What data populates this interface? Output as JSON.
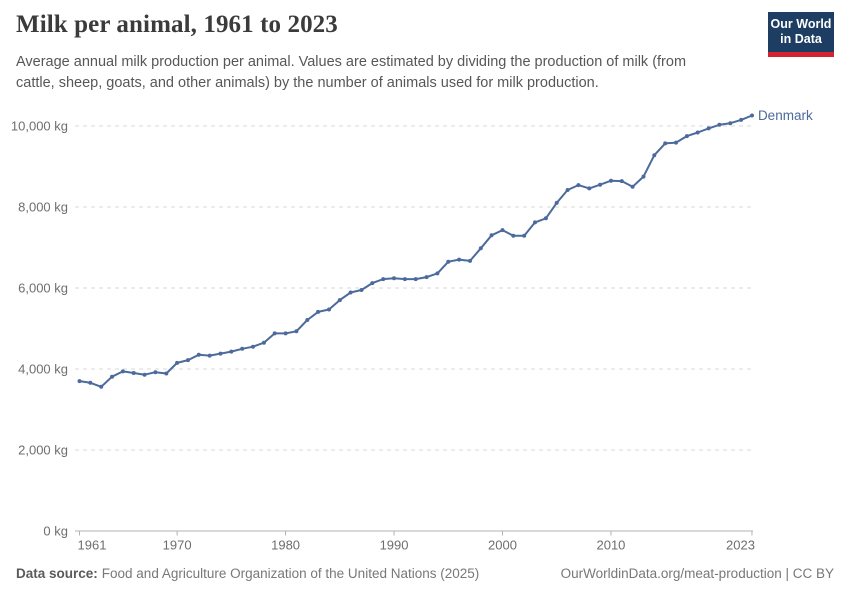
{
  "header": {
    "title": "Milk per animal, 1961 to 2023",
    "subtitle": "Average annual milk production per animal. Values are estimated by dividing the production of milk (from cattle, sheep, goats, and other animals) by the number of animals used for milk production.",
    "logo": {
      "line1": "Our World",
      "line2": "in Data"
    }
  },
  "footer": {
    "source_label": "Data source:",
    "source_text": "Food and Agriculture Organization of the United Nations (2025)",
    "link_text": "OurWorldinData.org/meat-production | CC BY"
  },
  "colors": {
    "series_blue": "#4c6a9c",
    "grid": "#dadada",
    "axis": "#b3b3b3",
    "tick_label": "#6e6e6e",
    "logo_navy": "#1d3d63",
    "logo_red": "#d4232e"
  },
  "chart_data": {
    "type": "line",
    "title": "Milk per animal, 1961 to 2023",
    "unit": "kg",
    "grid": true,
    "legend_position": "end-of-line-label",
    "xlim": [
      1961,
      2023
    ],
    "ylim": [
      0,
      10500
    ],
    "x_ticks": [
      1961,
      1970,
      1980,
      1990,
      2000,
      2010,
      2023
    ],
    "y_ticks": [
      0,
      2000,
      4000,
      6000,
      8000,
      10000
    ],
    "y_tick_labels": [
      "0 kg",
      "2,000 kg",
      "4,000 kg",
      "6,000 kg",
      "8,000 kg",
      "10,000 kg"
    ],
    "series": [
      {
        "name": "Denmark",
        "color": "#4c6a9c",
        "years": [
          1961,
          1962,
          1963,
          1964,
          1965,
          1966,
          1967,
          1968,
          1969,
          1970,
          1971,
          1972,
          1973,
          1974,
          1975,
          1976,
          1977,
          1978,
          1979,
          1980,
          1981,
          1982,
          1983,
          1984,
          1985,
          1986,
          1987,
          1988,
          1989,
          1990,
          1991,
          1992,
          1993,
          1994,
          1995,
          1996,
          1997,
          1998,
          1999,
          2000,
          2001,
          2002,
          2003,
          2004,
          2005,
          2006,
          2007,
          2008,
          2009,
          2010,
          2011,
          2012,
          2013,
          2014,
          2015,
          2016,
          2017,
          2018,
          2019,
          2020,
          2021,
          2022,
          2023
        ],
        "values": [
          3700,
          3660,
          3560,
          3810,
          3940,
          3900,
          3860,
          3920,
          3890,
          4150,
          4220,
          4350,
          4330,
          4380,
          4430,
          4500,
          4550,
          4650,
          4880,
          4880,
          4930,
          5210,
          5410,
          5470,
          5700,
          5890,
          5950,
          6120,
          6220,
          6240,
          6220,
          6220,
          6270,
          6360,
          6650,
          6700,
          6670,
          6980,
          7300,
          7430,
          7290,
          7290,
          7620,
          7720,
          8100,
          8420,
          8540,
          8460,
          8550,
          8650,
          8640,
          8500,
          8750,
          9280,
          9570,
          9590,
          9750,
          9840,
          9940,
          10030,
          10070,
          10150,
          10260
        ]
      }
    ]
  }
}
